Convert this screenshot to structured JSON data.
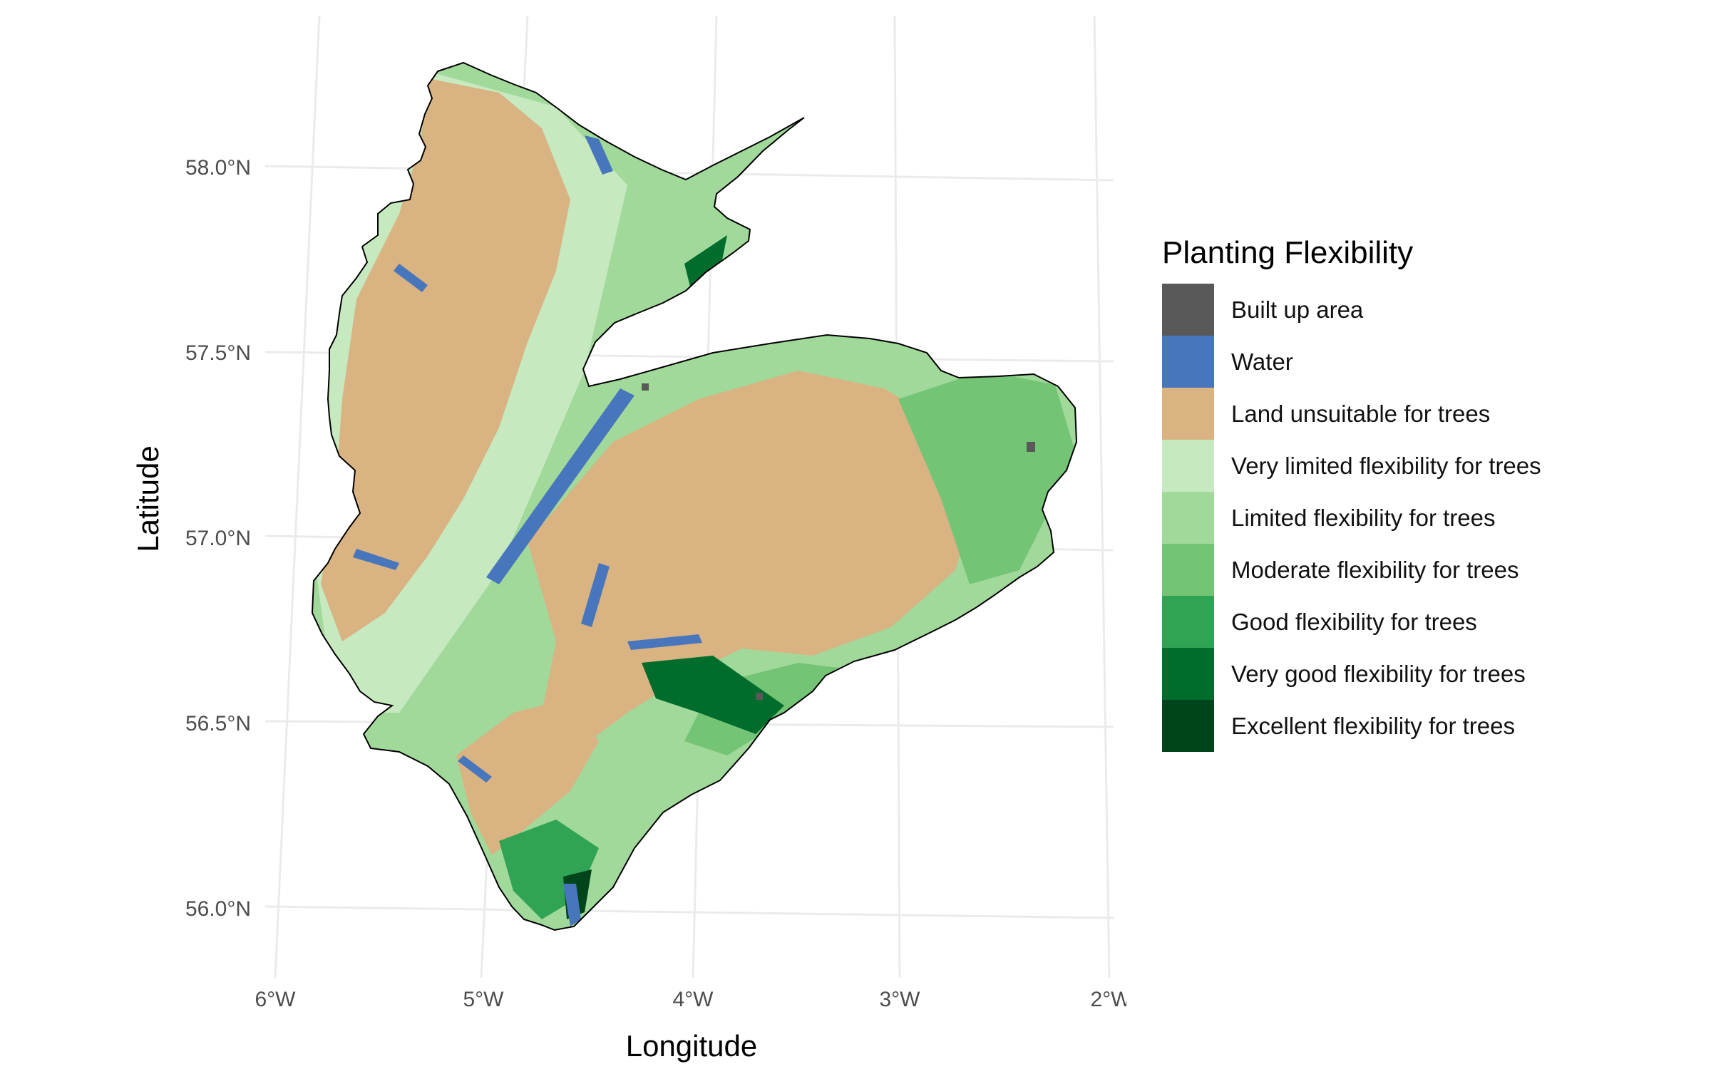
{
  "map": {
    "xlabel": "Longitude",
    "ylabel": "Latitude",
    "lon_ticks": [
      "6°W",
      "5°W",
      "4°W",
      "3°W",
      "2°W"
    ],
    "lat_ticks": [
      "58.0°N",
      "57.5°N",
      "57.0°N",
      "56.5°N",
      "56.0°N"
    ],
    "lon_range": [
      -6,
      -2
    ],
    "lat_range": [
      56.0,
      58.0
    ],
    "grid": true
  },
  "legend": {
    "title": "Planting Flexibility",
    "placement": "right",
    "items": [
      {
        "label": "Built up area",
        "color": "#595959"
      },
      {
        "label": "Water",
        "color": "#4776bd"
      },
      {
        "label": "Land unsuitable for trees",
        "color": "#d9b382"
      },
      {
        "label": "Very limited flexibility for trees",
        "color": "#c7e9c0"
      },
      {
        "label": "Limited flexibility for trees",
        "color": "#a1d99b"
      },
      {
        "label": "Moderate flexibility for trees",
        "color": "#74c476"
      },
      {
        "label": "Good flexibility for trees",
        "color": "#31a354"
      },
      {
        "label": "Very good flexibility for trees",
        "color": "#006d2c"
      },
      {
        "label": "Excellent flexibility for trees",
        "color": "#00441b"
      }
    ]
  }
}
